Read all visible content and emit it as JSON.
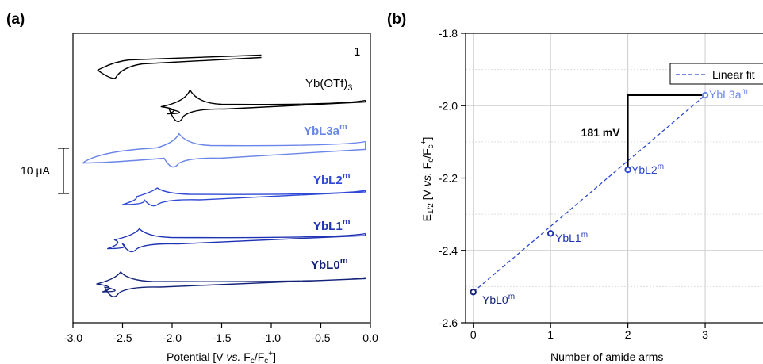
{
  "chart_data": [
    {
      "panel": "(a)",
      "type": "line",
      "xlabel": "Potential [V vs. Fc/Fc+]",
      "xlim": [
        -3.0,
        0.0
      ],
      "xticks": [
        "-3.0",
        "-2.5",
        "-2.0",
        "-1.5",
        "-1.0",
        "-0.5",
        "0.0"
      ],
      "scale_bar": "10 µA",
      "series": [
        {
          "name": "1",
          "color": "#000000",
          "x_range": [
            -2.75,
            -1.1
          ],
          "cathodic_peak_x": -2.62
        },
        {
          "name": "Yb(OTf)3",
          "color": "#000000",
          "x_range": [
            -2.05,
            -0.05
          ],
          "cathodic_peak_x": -1.95,
          "anodic_peak_x": -1.82
        },
        {
          "name": "YbL3am",
          "color": "#6b86e8",
          "x_range": [
            -2.9,
            -0.05
          ],
          "cathodic_peak_x": -2.0,
          "anodic_peak_x": -1.93
        },
        {
          "name": "YbL2m",
          "color": "#2f49d6",
          "x_range": [
            -2.5,
            -0.05
          ],
          "cathodic_peak_x": -2.2,
          "anodic_peak_x": -2.15
        },
        {
          "name": "YbL1m",
          "color": "#1f33b5",
          "x_range": [
            -2.65,
            -0.05
          ],
          "cathodic_peak_x": -2.42,
          "anodic_peak_x": -2.33
        },
        {
          "name": "YbL0m",
          "color": "#14237a",
          "x_range": [
            -2.7,
            -0.05
          ],
          "cathodic_peak_x": -2.6,
          "anodic_peak_x": -2.52
        }
      ]
    },
    {
      "panel": "(b)",
      "type": "scatter",
      "xlabel": "Number of amide arms",
      "ylabel": "E1/2 [V vs. Fc/Fc+]",
      "xlim": [
        -0.1,
        3.8
      ],
      "ylim": [
        -2.6,
        -1.8
      ],
      "xticks": [
        "0",
        "1",
        "2",
        "3"
      ],
      "yticks": [
        "-1.8",
        "-2.0",
        "-2.2",
        "-2.4",
        "-2.6"
      ],
      "grid": true,
      "points": [
        {
          "x": 0,
          "y": -2.515,
          "label": "YbL0m",
          "color": "#14237a"
        },
        {
          "x": 1,
          "y": -2.353,
          "label": "YbL1m",
          "color": "#1f33b5"
        },
        {
          "x": 2,
          "y": -2.177,
          "label": "YbL2m",
          "color": "#2f49d6"
        },
        {
          "x": 3,
          "y": -1.971,
          "label": "YbL3am",
          "color": "#6b86e8"
        }
      ],
      "fit": {
        "name": "Linear fit",
        "x": [
          0,
          3
        ],
        "y": [
          -2.515,
          -1.971
        ],
        "color": "#2f49d6"
      },
      "annotation": {
        "text": "181 mV",
        "x0": 2,
        "x1": 3,
        "y0": -2.177,
        "y1": -1.971
      },
      "legend_position": "top-right"
    }
  ]
}
